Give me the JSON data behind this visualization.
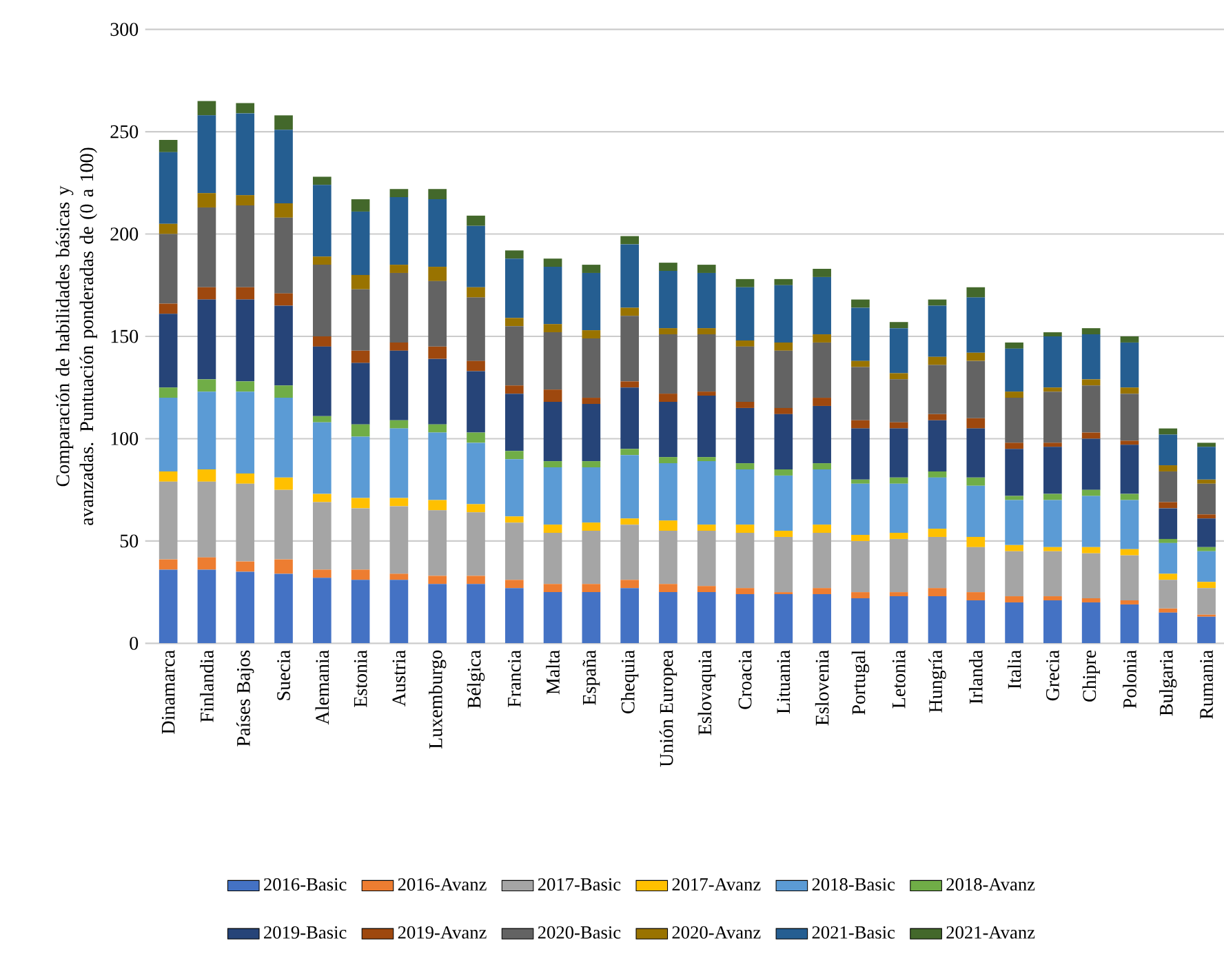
{
  "chart_data": {
    "type": "bar",
    "stacked": true,
    "ylabel": "Comparación de habilidades básicas y avanzadas. Puntuación ponderadas de (0 a 100)",
    "categories": [
      "Dinamarca",
      "Finlandia",
      "Países Bajos",
      "Suecia",
      "Alemania",
      "Estonia",
      "Austria",
      "Luxemburgo",
      "Bélgica",
      "Francia",
      "Malta",
      "España",
      "Chequia",
      "Unión Europea",
      "Eslovaquia",
      "Croacia",
      "Lituania",
      "Eslovenia",
      "Portugal",
      "Letonia",
      "Hungría",
      "Irlanda",
      "Italia",
      "Grecia",
      "Chipre",
      "Polonia",
      "Bulgaria",
      "Rumania"
    ],
    "series": [
      {
        "name": "2016-Basic",
        "color": "#4472c4",
        "values": [
          36,
          36,
          35,
          34,
          32,
          31,
          31,
          29,
          29,
          27,
          25,
          25,
          27,
          25,
          25,
          24,
          24,
          24,
          22,
          23,
          23,
          21,
          20,
          21,
          20,
          19,
          15,
          13
        ]
      },
      {
        "name": "2016-Avanz",
        "color": "#ed7d31",
        "values": [
          5,
          6,
          5,
          7,
          4,
          5,
          3,
          4,
          4,
          4,
          4,
          4,
          4,
          4,
          3,
          3,
          1,
          3,
          3,
          2,
          4,
          4,
          3,
          2,
          2,
          2,
          2,
          1
        ]
      },
      {
        "name": "2017-Basic",
        "color": "#a5a5a5",
        "values": [
          38,
          37,
          38,
          34,
          33,
          30,
          33,
          32,
          31,
          28,
          25,
          26,
          27,
          26,
          27,
          27,
          27,
          27,
          25,
          26,
          25,
          22,
          22,
          22,
          22,
          22,
          14,
          13
        ]
      },
      {
        "name": "2017-Avanz",
        "color": "#ffc000",
        "values": [
          5,
          6,
          5,
          6,
          4,
          5,
          4,
          5,
          4,
          3,
          4,
          4,
          3,
          5,
          3,
          4,
          3,
          4,
          3,
          3,
          4,
          5,
          3,
          2,
          3,
          3,
          3,
          3
        ]
      },
      {
        "name": "2018-Basic",
        "color": "#5b9bd5",
        "values": [
          36,
          38,
          40,
          39,
          35,
          30,
          34,
          33,
          30,
          28,
          28,
          27,
          31,
          28,
          31,
          27,
          27,
          27,
          25,
          24,
          25,
          25,
          22,
          23,
          25,
          24,
          15,
          15
        ]
      },
      {
        "name": "2018-Avanz",
        "color": "#70ad47",
        "values": [
          5,
          6,
          5,
          6,
          3,
          6,
          4,
          4,
          5,
          4,
          3,
          3,
          3,
          3,
          2,
          3,
          3,
          3,
          2,
          3,
          3,
          4,
          2,
          3,
          3,
          3,
          2,
          2
        ]
      },
      {
        "name": "2019-Basic",
        "color": "#264478",
        "values": [
          36,
          39,
          40,
          39,
          34,
          30,
          34,
          32,
          30,
          28,
          29,
          28,
          30,
          27,
          30,
          27,
          27,
          28,
          25,
          24,
          25,
          24,
          23,
          23,
          25,
          24,
          15,
          14
        ]
      },
      {
        "name": "2019-Avanz",
        "color": "#9e480e",
        "values": [
          5,
          6,
          6,
          6,
          5,
          6,
          4,
          6,
          5,
          4,
          6,
          3,
          3,
          4,
          2,
          3,
          3,
          4,
          4,
          3,
          3,
          5,
          3,
          2,
          3,
          2,
          3,
          2
        ]
      },
      {
        "name": "2020-Basic",
        "color": "#636363",
        "values": [
          34,
          39,
          40,
          37,
          35,
          30,
          34,
          32,
          31,
          29,
          28,
          29,
          32,
          29,
          28,
          27,
          28,
          27,
          26,
          21,
          24,
          28,
          22,
          25,
          23,
          23,
          15,
          15
        ]
      },
      {
        "name": "2020-Avanz",
        "color": "#997300",
        "values": [
          5,
          7,
          5,
          7,
          4,
          7,
          4,
          7,
          5,
          4,
          4,
          4,
          4,
          3,
          3,
          3,
          4,
          4,
          3,
          3,
          4,
          4,
          3,
          2,
          3,
          3,
          3,
          2
        ]
      },
      {
        "name": "2021-Basic",
        "color": "#255e91",
        "values": [
          35,
          38,
          40,
          36,
          35,
          31,
          33,
          33,
          30,
          29,
          28,
          28,
          31,
          28,
          27,
          26,
          28,
          28,
          26,
          22,
          25,
          27,
          21,
          25,
          22,
          22,
          15,
          16
        ]
      },
      {
        "name": "2021-Avanz",
        "color": "#43682b",
        "values": [
          6,
          7,
          5,
          7,
          4,
          6,
          4,
          5,
          5,
          4,
          4,
          4,
          4,
          4,
          4,
          4,
          3,
          4,
          4,
          3,
          3,
          5,
          3,
          2,
          3,
          3,
          3,
          2
        ]
      }
    ],
    "ylim": [
      0,
      300
    ],
    "yticks": [
      0,
      50,
      100,
      150,
      200,
      250,
      300
    ],
    "grid": "y",
    "legend": "bottom"
  }
}
